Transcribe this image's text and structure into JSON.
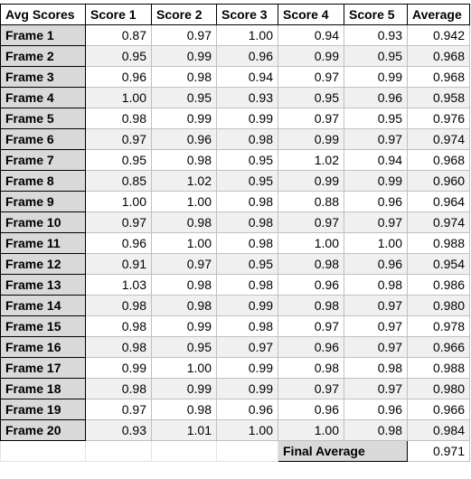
{
  "headers": [
    "Avg Scores",
    "Score 1",
    "Score 2",
    "Score 3",
    "Score 4",
    "Score 5",
    "Average"
  ],
  "rows": [
    {
      "label": "Frame 1",
      "s1": "0.87",
      "s2": "0.97",
      "s3": "1.00",
      "s4": "0.94",
      "s5": "0.93",
      "avg": "0.942"
    },
    {
      "label": "Frame 2",
      "s1": "0.95",
      "s2": "0.99",
      "s3": "0.96",
      "s4": "0.99",
      "s5": "0.95",
      "avg": "0.968"
    },
    {
      "label": "Frame 3",
      "s1": "0.96",
      "s2": "0.98",
      "s3": "0.94",
      "s4": "0.97",
      "s5": "0.99",
      "avg": "0.968"
    },
    {
      "label": "Frame 4",
      "s1": "1.00",
      "s2": "0.95",
      "s3": "0.93",
      "s4": "0.95",
      "s5": "0.96",
      "avg": "0.958"
    },
    {
      "label": "Frame 5",
      "s1": "0.98",
      "s2": "0.99",
      "s3": "0.99",
      "s4": "0.97",
      "s5": "0.95",
      "avg": "0.976"
    },
    {
      "label": "Frame 6",
      "s1": "0.97",
      "s2": "0.96",
      "s3": "0.98",
      "s4": "0.99",
      "s5": "0.97",
      "avg": "0.974"
    },
    {
      "label": "Frame 7",
      "s1": "0.95",
      "s2": "0.98",
      "s3": "0.95",
      "s4": "1.02",
      "s5": "0.94",
      "avg": "0.968"
    },
    {
      "label": "Frame 8",
      "s1": "0.85",
      "s2": "1.02",
      "s3": "0.95",
      "s4": "0.99",
      "s5": "0.99",
      "avg": "0.960"
    },
    {
      "label": "Frame 9",
      "s1": "1.00",
      "s2": "1.00",
      "s3": "0.98",
      "s4": "0.88",
      "s5": "0.96",
      "avg": "0.964"
    },
    {
      "label": "Frame 10",
      "s1": "0.97",
      "s2": "0.98",
      "s3": "0.98",
      "s4": "0.97",
      "s5": "0.97",
      "avg": "0.974"
    },
    {
      "label": "Frame 11",
      "s1": "0.96",
      "s2": "1.00",
      "s3": "0.98",
      "s4": "1.00",
      "s5": "1.00",
      "avg": "0.988"
    },
    {
      "label": "Frame 12",
      "s1": "0.91",
      "s2": "0.97",
      "s3": "0.95",
      "s4": "0.98",
      "s5": "0.96",
      "avg": "0.954"
    },
    {
      "label": "Frame 13",
      "s1": "1.03",
      "s2": "0.98",
      "s3": "0.98",
      "s4": "0.96",
      "s5": "0.98",
      "avg": "0.986"
    },
    {
      "label": "Frame 14",
      "s1": "0.98",
      "s2": "0.98",
      "s3": "0.99",
      "s4": "0.98",
      "s5": "0.97",
      "avg": "0.980"
    },
    {
      "label": "Frame 15",
      "s1": "0.98",
      "s2": "0.99",
      "s3": "0.98",
      "s4": "0.97",
      "s5": "0.97",
      "avg": "0.978"
    },
    {
      "label": "Frame 16",
      "s1": "0.98",
      "s2": "0.95",
      "s3": "0.97",
      "s4": "0.96",
      "s5": "0.97",
      "avg": "0.966"
    },
    {
      "label": "Frame 17",
      "s1": "0.99",
      "s2": "1.00",
      "s3": "0.99",
      "s4": "0.98",
      "s5": "0.98",
      "avg": "0.988"
    },
    {
      "label": "Frame 18",
      "s1": "0.98",
      "s2": "0.99",
      "s3": "0.99",
      "s4": "0.97",
      "s5": "0.97",
      "avg": "0.980"
    },
    {
      "label": "Frame 19",
      "s1": "0.97",
      "s2": "0.98",
      "s3": "0.96",
      "s4": "0.96",
      "s5": "0.96",
      "avg": "0.966"
    },
    {
      "label": "Frame 20",
      "s1": "0.93",
      "s2": "1.01",
      "s3": "1.00",
      "s4": "1.00",
      "s5": "0.98",
      "avg": "0.984"
    }
  ],
  "final": {
    "label": "Final Average",
    "value": "0.971"
  },
  "colors": {
    "label_fill": "#d9d9d9",
    "shade_fill": "#f0f0f0",
    "grid": "#c0c0c0"
  }
}
